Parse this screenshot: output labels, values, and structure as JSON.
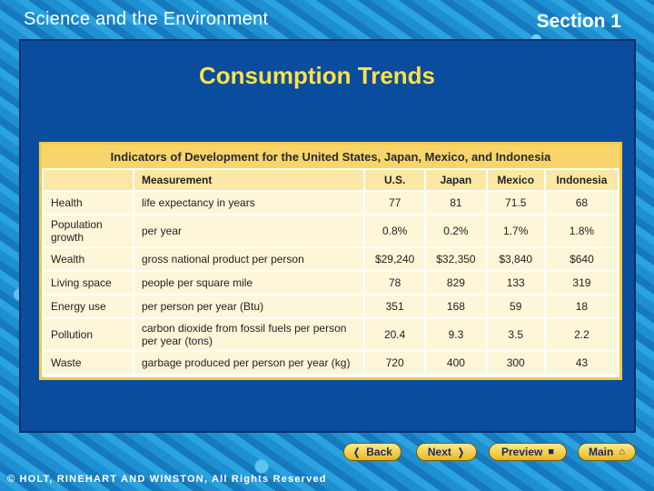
{
  "header": {
    "title": "Science and the Environment",
    "section": "Section 1"
  },
  "slide": {
    "title": "Consumption Trends"
  },
  "table": {
    "caption": "Indicators of Development for the United States, Japan, Mexico, and Indonesia",
    "columns": [
      "",
      "Measurement",
      "U.S.",
      "Japan",
      "Mexico",
      "Indonesia"
    ],
    "rows": [
      {
        "indicator": "Health",
        "measurement": "life expectancy in years",
        "us": "77",
        "japan": "81",
        "mexico": "71.5",
        "indonesia": "68"
      },
      {
        "indicator": "Population growth",
        "measurement": "per year",
        "us": "0.8%",
        "japan": "0.2%",
        "mexico": "1.7%",
        "indonesia": "1.8%"
      },
      {
        "indicator": "Wealth",
        "measurement": "gross national product per person",
        "us": "$29,240",
        "japan": "$32,350",
        "mexico": "$3,840",
        "indonesia": "$640"
      },
      {
        "indicator": "Living space",
        "measurement": "people per square mile",
        "us": "78",
        "japan": "829",
        "mexico": "133",
        "indonesia": "319"
      },
      {
        "indicator": "Energy use",
        "measurement": "per person per year (Btu)",
        "us": "351",
        "japan": "168",
        "mexico": "59",
        "indonesia": "18"
      },
      {
        "indicator": "Pollution",
        "measurement": "carbon dioxide from fossil fuels per person per year (tons)",
        "us": "20.4",
        "japan": "9.3",
        "mexico": "3.5",
        "indonesia": "2.2"
      },
      {
        "indicator": "Waste",
        "measurement": "garbage produced per person per year (kg)",
        "us": "720",
        "japan": "400",
        "mexico": "300",
        "indonesia": "43"
      }
    ]
  },
  "nav": {
    "back_label": "Back",
    "next_label": "Next",
    "preview_label": "Preview",
    "main_label": "Main",
    "back_icon": "chevron-left-icon",
    "next_icon": "chevron-right-icon",
    "preview_icon": "preview-icon",
    "main_icon": "home-icon"
  },
  "footer": {
    "copyright": "© HOLT, RINEHART AND WINSTON, All Rights Reserved"
  },
  "colors": {
    "panel": "#0a4d9e",
    "title": "#ffe14a",
    "table_header": "#f7d56a",
    "table_cell": "#fdf6d8"
  }
}
